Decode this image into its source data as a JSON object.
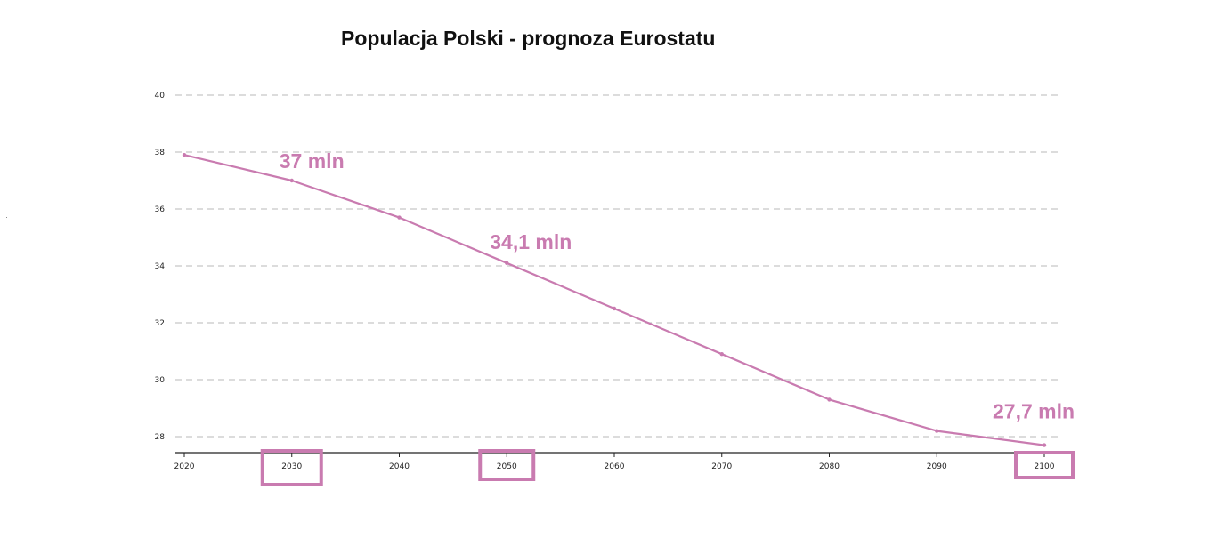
{
  "chart_data": {
    "type": "line",
    "title": "Populacja Polski - prognoza Eurostatu",
    "xlabel": "",
    "ylabel": "",
    "x": [
      2020,
      2030,
      2040,
      2050,
      2060,
      2070,
      2080,
      2090,
      2100
    ],
    "series": [
      {
        "name": "Populacja Polski",
        "values": [
          37.9,
          37.0,
          35.7,
          34.1,
          32.5,
          30.9,
          29.3,
          28.2,
          27.7
        ]
      }
    ],
    "x_ticks": [
      "2020",
      "2030",
      "2040",
      "2050",
      "2060",
      "2070",
      "2080",
      "2090",
      "2100"
    ],
    "y_ticks": [
      "28",
      "30",
      "32",
      "34",
      "36",
      "38",
      "40"
    ],
    "xlim": [
      2020,
      2100
    ],
    "ylim": [
      27.4,
      40
    ],
    "grid": "horizontal dashed",
    "annotations": [
      {
        "x": 2030,
        "y": 37.0,
        "text": "37 mln"
      },
      {
        "x": 2050,
        "y": 34.1,
        "text": "34,1 mln"
      },
      {
        "x": 2100,
        "y": 27.7,
        "text": "27,7 mln"
      }
    ],
    "highlighted_ticks": [
      "2030",
      "2050",
      "2100"
    ],
    "colors": {
      "line": "#c97bb0",
      "annotation": "#c97bb0",
      "highlight_box": "#c97bb0",
      "grid": "#c8c8c8",
      "axis": "#222222"
    }
  }
}
